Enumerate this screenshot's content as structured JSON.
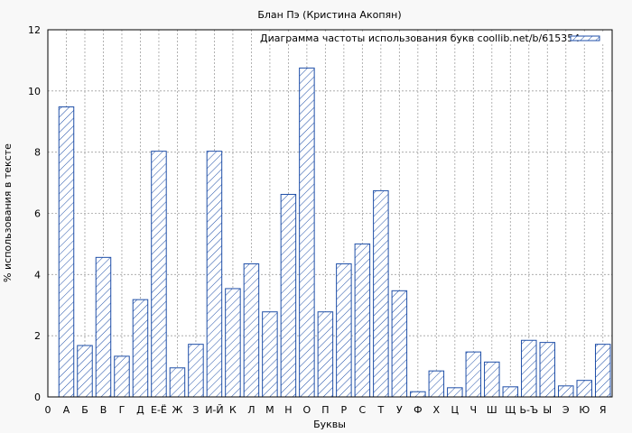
{
  "chart_data": {
    "type": "bar",
    "title": "Блан Пэ (Кристина Акопян)",
    "xlabel": "Буквы",
    "ylabel": "% использования в тексте",
    "ylim": [
      0,
      12
    ],
    "yticks": [
      "0",
      "2",
      "4",
      "6",
      "8",
      "10",
      "12"
    ],
    "x_first_tick": "0",
    "grid": true,
    "legend_position": "top-right",
    "series": [
      {
        "name": "Диаграмма частоты использования букв coollib.net/b/615354",
        "color": "#1f4fa8",
        "fill": "hatch"
      }
    ],
    "categories": [
      "А",
      "Б",
      "В",
      "Г",
      "Д",
      "Е-Ё",
      "Ж",
      "З",
      "И-Й",
      "К",
      "Л",
      "М",
      "Н",
      "О",
      "П",
      "Р",
      "С",
      "Т",
      "У",
      "Ф",
      "Х",
      "Ц",
      "Ч",
      "Ш",
      "Щ",
      "Ь-Ъ",
      "Ы",
      "Э",
      "Ю",
      "Я"
    ],
    "values": [
      9.48,
      1.68,
      4.56,
      1.33,
      3.18,
      8.03,
      0.95,
      1.72,
      8.03,
      3.54,
      4.35,
      2.78,
      6.62,
      10.75,
      2.78,
      4.35,
      5.0,
      6.74,
      3.47,
      0.17,
      0.85,
      0.3,
      1.47,
      1.14,
      0.33,
      1.85,
      1.78,
      0.36,
      0.54,
      1.72
    ]
  }
}
